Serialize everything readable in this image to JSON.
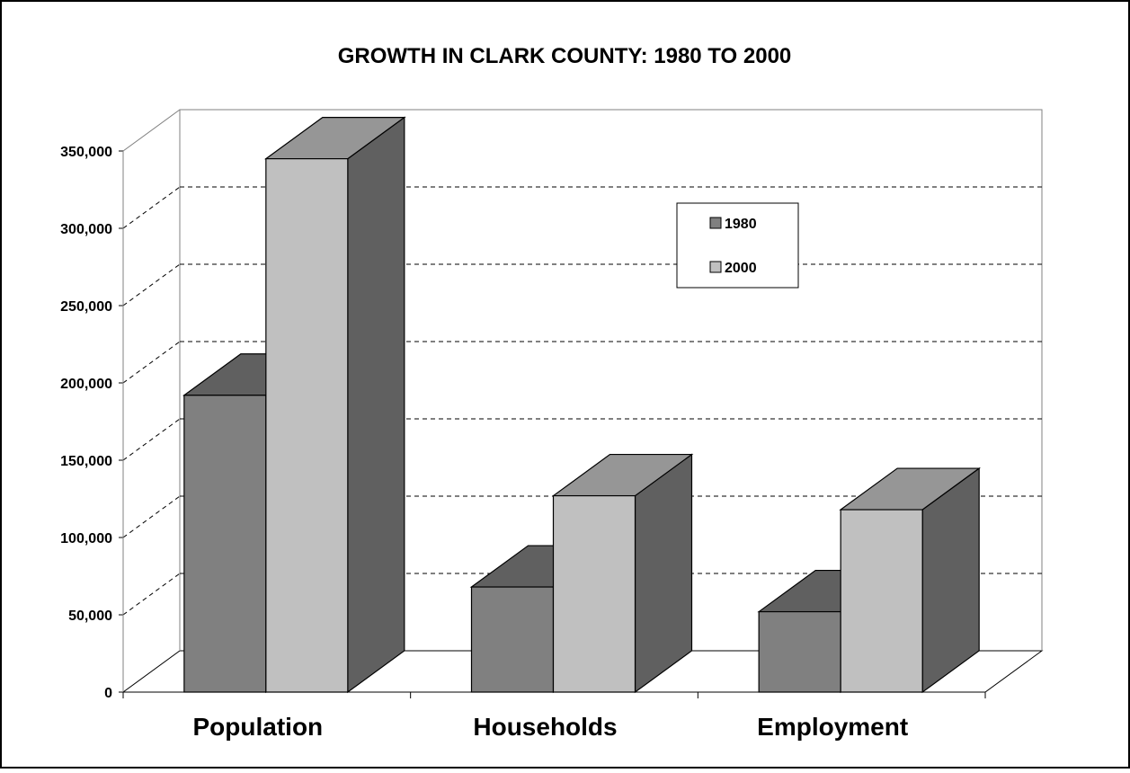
{
  "chart_data": {
    "type": "bar",
    "title": "GROWTH IN CLARK COUNTY: 1980 TO 2000",
    "xlabel": "",
    "ylabel": "",
    "categories": [
      "Population",
      "Households",
      "Employment"
    ],
    "series": [
      {
        "name": "1980",
        "values": [
          192000,
          68000,
          52000
        ]
      },
      {
        "name": "2000",
        "values": [
          345000,
          127000,
          118000
        ]
      }
    ],
    "ylim": [
      0,
      350000
    ],
    "yticks": [
      "0",
      "50,000",
      "100,000",
      "150,000",
      "200,000",
      "250,000",
      "300,000",
      "350,000"
    ],
    "grid": true,
    "legend_position": "top-right",
    "colors": {
      "series_1980_front": "#808080",
      "series_1980_top": "#606060",
      "series_1980_side": "#4f4f4f",
      "series_2000_front": "#c0c0c0",
      "series_2000_top": "#969696",
      "series_2000_side": "#606060",
      "gridline": "#000000",
      "frame": "#000000",
      "background": "#ffffff"
    }
  }
}
